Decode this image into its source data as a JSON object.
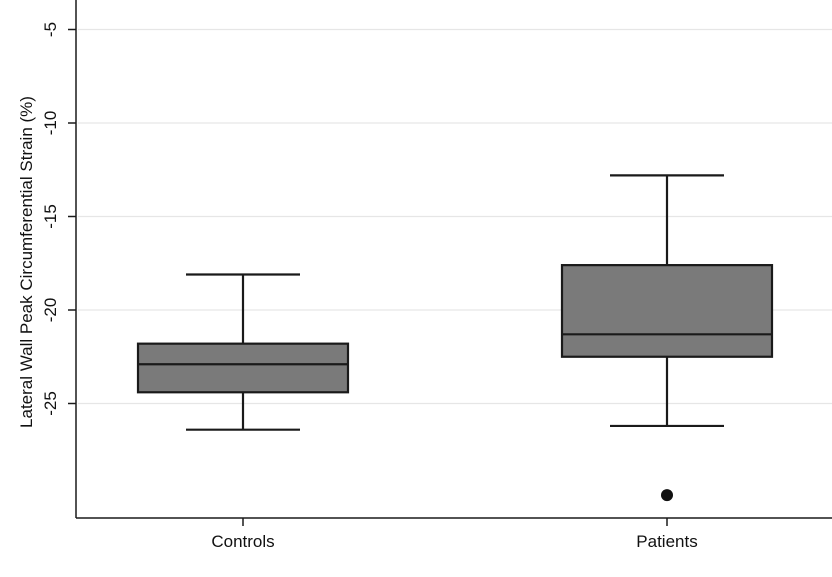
{
  "chart_data": {
    "type": "box",
    "ylabel": "Lateral Wall Peak Circumferential Strain (%)",
    "xlabel": "",
    "ylim": [
      -30,
      -4.5
    ],
    "yticks": [
      -5,
      -10,
      -15,
      -20,
      -25
    ],
    "grid": true,
    "categories": [
      "Controls",
      "Patients"
    ],
    "boxes": [
      {
        "name": "Controls",
        "min": -26.4,
        "q1": -24.4,
        "median": -22.9,
        "q3": -21.8,
        "max": -18.1,
        "outliers": []
      },
      {
        "name": "Patients",
        "min": -26.2,
        "q1": -22.5,
        "median": -21.3,
        "q3": -17.6,
        "max": -12.8,
        "outliers": [
          -29.9
        ]
      }
    ],
    "colors": {
      "box_fill": "#7a7a7a",
      "line": "#1a1a1a",
      "grid": "#e6e6e6"
    }
  }
}
